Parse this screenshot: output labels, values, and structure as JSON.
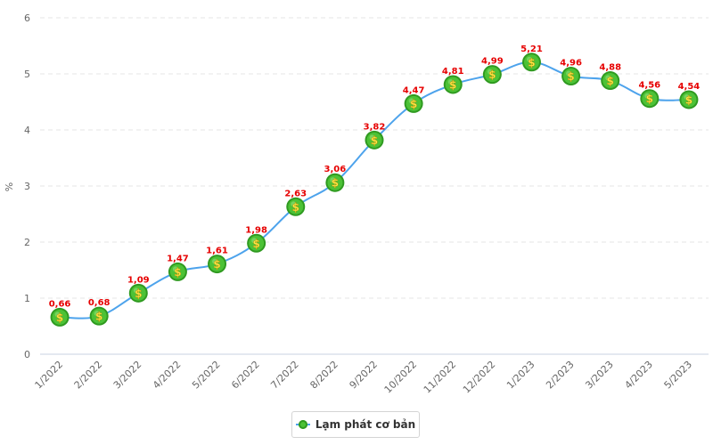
{
  "chart_data": {
    "type": "line",
    "categories": [
      "1/2022",
      "2/2022",
      "3/2022",
      "4/2022",
      "5/2022",
      "6/2022",
      "7/2022",
      "8/2022",
      "9/2022",
      "10/2022",
      "11/2022",
      "12/2022",
      "1/2023",
      "2/2023",
      "3/2023",
      "4/2023",
      "5/2023"
    ],
    "series": [
      {
        "name": "Lạm phát cơ bản",
        "values": [
          0.66,
          0.68,
          1.09,
          1.47,
          1.61,
          1.98,
          2.63,
          3.06,
          3.82,
          4.47,
          4.81,
          4.99,
          5.21,
          4.96,
          4.88,
          4.56,
          4.54
        ],
        "value_labels": [
          "0,66",
          "0,68",
          "1,09",
          "1,47",
          "1,61",
          "1,98",
          "2,63",
          "3,06",
          "3,82",
          "4,47",
          "4,81",
          "4,99",
          "5,21",
          "4,96",
          "4,88",
          "4,56",
          "4,54"
        ],
        "color": "#4da3ec",
        "marker_color": "#4cc236",
        "marker_icon": "dollar-coin-icon"
      }
    ],
    "title": "",
    "xlabel": "",
    "ylabel": "%",
    "ylim": [
      0,
      6
    ],
    "yticks": [
      "0",
      "1",
      "2",
      "3",
      "4",
      "5",
      "6"
    ],
    "grid": true,
    "legend_position": "bottom-center",
    "label_color": "#e60000"
  }
}
